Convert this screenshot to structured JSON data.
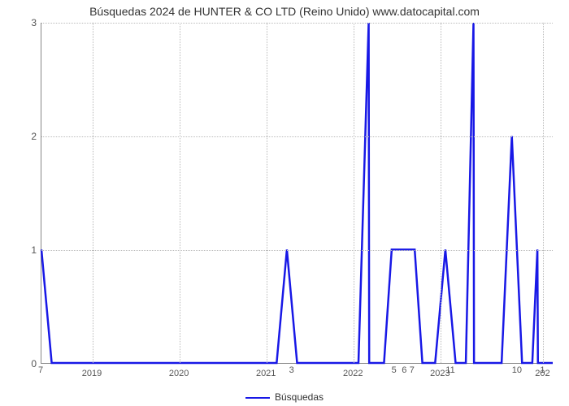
{
  "chart": {
    "type": "line",
    "title": "Búsquedas 2024 de HUNTER & CO LTD (Reino Unido) www.datocapital.com",
    "title_fontsize": 14,
    "background_color": "#ffffff",
    "grid_color": "#bbbbbb",
    "grid_style": "dotted",
    "axis_color": "#888888",
    "series_color": "#1818e6",
    "line_width": 2.5,
    "legend": {
      "label": "Búsquedas",
      "position": "bottom-center"
    },
    "ylim": [
      0,
      3
    ],
    "ytick_step": 1,
    "yticks": [
      {
        "v": 0,
        "label": "0"
      },
      {
        "v": 1,
        "label": "1"
      },
      {
        "v": 2,
        "label": "2"
      },
      {
        "v": 3,
        "label": "3"
      }
    ],
    "xlim": [
      0,
      100
    ],
    "xticks": [
      {
        "x": 10,
        "label": "2019"
      },
      {
        "x": 27,
        "label": "2020"
      },
      {
        "x": 44,
        "label": "2021"
      },
      {
        "x": 61,
        "label": "2022"
      },
      {
        "x": 78,
        "label": "2023"
      },
      {
        "x": 98,
        "label": "202"
      }
    ],
    "point_labels": [
      {
        "x": 0,
        "label": "7"
      },
      {
        "x": 49,
        "label": "3"
      },
      {
        "x": 69,
        "label": "5"
      },
      {
        "x": 71,
        "label": "6"
      },
      {
        "x": 72.5,
        "label": "7"
      },
      {
        "x": 80,
        "label": "11"
      },
      {
        "x": 93,
        "label": "10"
      },
      {
        "x": 98,
        "label": "1"
      }
    ],
    "data": [
      {
        "x": 0,
        "y": 1
      },
      {
        "x": 2,
        "y": 0
      },
      {
        "x": 46,
        "y": 0
      },
      {
        "x": 48,
        "y": 1
      },
      {
        "x": 50,
        "y": 0
      },
      {
        "x": 62,
        "y": 0
      },
      {
        "x": 64,
        "y": 3
      },
      {
        "x": 64.1,
        "y": 0
      },
      {
        "x": 67,
        "y": 0
      },
      {
        "x": 68.5,
        "y": 1
      },
      {
        "x": 73,
        "y": 1
      },
      {
        "x": 74.5,
        "y": 0
      },
      {
        "x": 77,
        "y": 0
      },
      {
        "x": 79,
        "y": 1
      },
      {
        "x": 81,
        "y": 0
      },
      {
        "x": 83,
        "y": 0
      },
      {
        "x": 84.5,
        "y": 3
      },
      {
        "x": 84.6,
        "y": 0
      },
      {
        "x": 90,
        "y": 0
      },
      {
        "x": 92,
        "y": 2
      },
      {
        "x": 94,
        "y": 0
      },
      {
        "x": 96,
        "y": 0
      },
      {
        "x": 97,
        "y": 1
      },
      {
        "x": 97.1,
        "y": 0
      },
      {
        "x": 100,
        "y": 0
      }
    ]
  }
}
